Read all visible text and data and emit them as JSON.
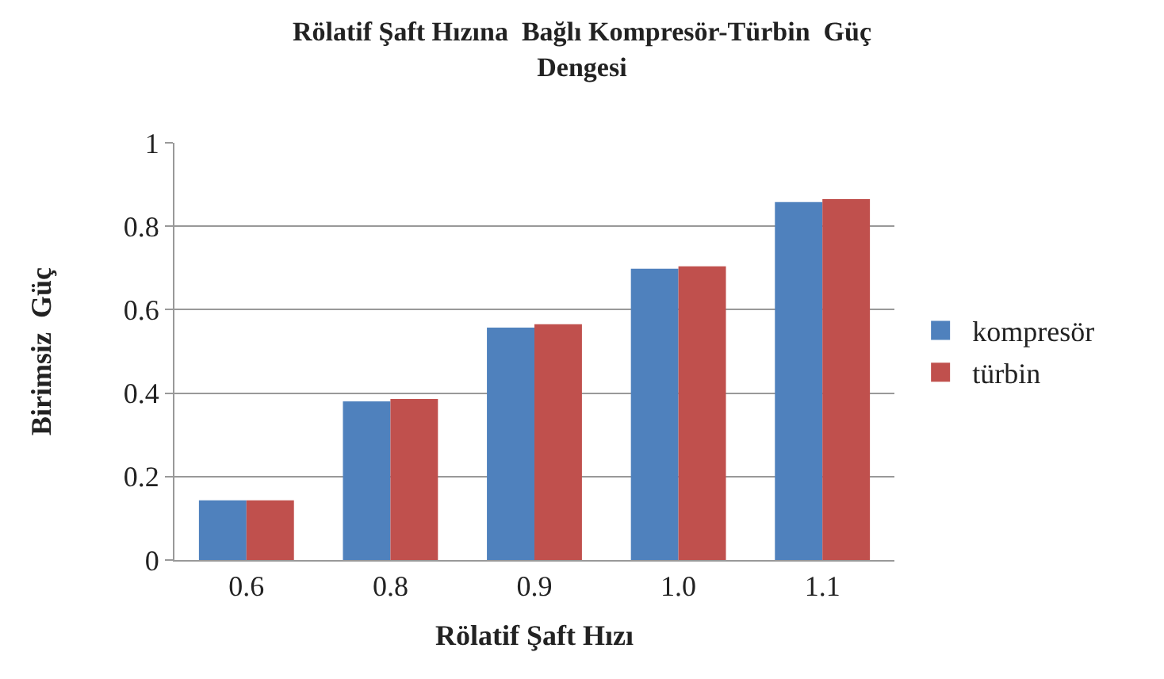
{
  "chart_data": {
    "type": "bar",
    "title": "Rölatif Şaft Hızına  Bağlı Kompresör-Türbin  Güç\nDengesi",
    "xlabel": "Rölatif Şaft Hızı",
    "ylabel": "Birimsiz  Güç",
    "categories": [
      "0.6",
      "0.8",
      "0.9",
      "1.0",
      "1.1"
    ],
    "series": [
      {
        "name": "kompresör",
        "color": "#4f81bd",
        "values": [
          0.143,
          0.38,
          0.557,
          0.698,
          0.858
        ]
      },
      {
        "name": "türbin",
        "color": "#c0504d",
        "values": [
          0.143,
          0.386,
          0.565,
          0.704,
          0.865
        ]
      }
    ],
    "ylim": [
      0,
      1
    ],
    "yticks": [
      0,
      0.2,
      0.4,
      0.6,
      0.8,
      1
    ],
    "grid": "y",
    "legend": "right"
  }
}
